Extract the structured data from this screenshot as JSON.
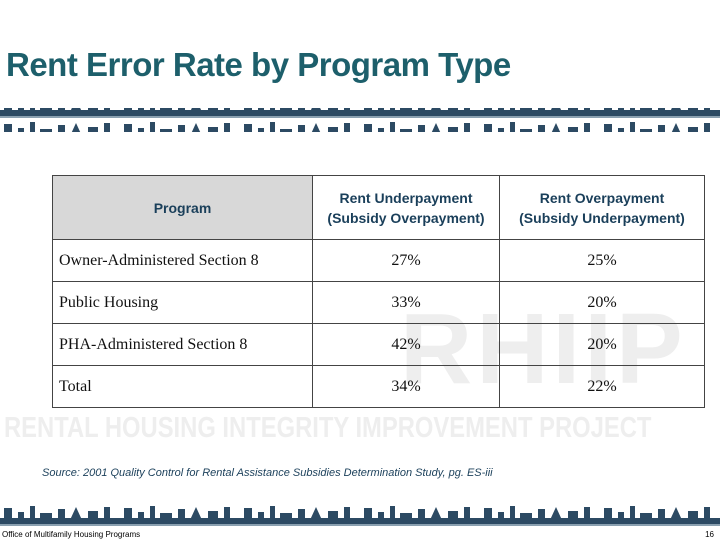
{
  "header": {
    "title": "Rent Error Rate by Program Type"
  },
  "watermark": {
    "logo": "RHIIP",
    "text": "RENTAL HOUSING INTEGRITY IMPROVEMENT PROJECT"
  },
  "table": {
    "columns": [
      "Program",
      "Rent Underpayment (Subsidy Overpayment)",
      "Rent Overpayment (Subsidy Underpayment)"
    ],
    "rows": [
      [
        "Owner-Administered Section 8",
        "27%",
        "25%"
      ],
      [
        "Public Housing",
        "33%",
        "20%"
      ],
      [
        "PHA-Administered Section 8",
        "42%",
        "20%"
      ],
      [
        "Total",
        "34%",
        "22%"
      ]
    ]
  },
  "source": "Source: 2001 Quality Control for Rental Assistance Subsidies Determination Study, pg. ES-iii",
  "footer": {
    "office": "Office of Multifamily Housing Programs",
    "page": "16"
  }
}
